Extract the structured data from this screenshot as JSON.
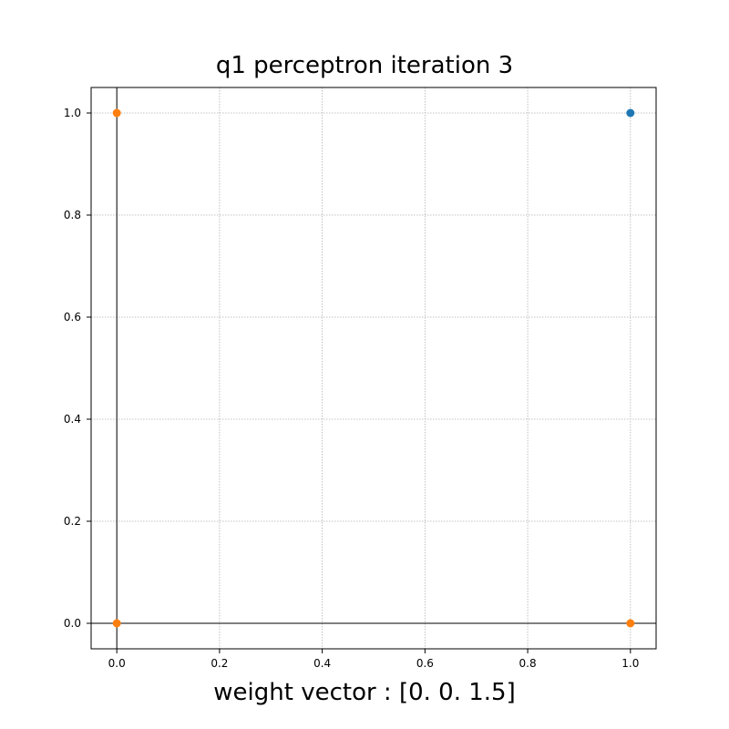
{
  "chart_data": {
    "type": "scatter",
    "title": "q1 perceptron iteration 3",
    "xlabel": "weight vector : [0.  0.  1.5]",
    "ylabel": "",
    "xlim": [
      -0.05,
      1.05
    ],
    "ylim": [
      -0.05,
      1.05
    ],
    "xticks": [
      "0.0",
      "0.2",
      "0.4",
      "0.6",
      "0.8",
      "1.0"
    ],
    "yticks": [
      "0.0",
      "0.2",
      "0.4",
      "0.6",
      "0.8",
      "1.0"
    ],
    "grid": true,
    "axis_lines_at_zero": true,
    "series": [
      {
        "color": "#1f77b4",
        "points": [
          {
            "x": 1.0,
            "y": 1.0
          }
        ]
      },
      {
        "color": "#ff7f0e",
        "points": [
          {
            "x": 0.0,
            "y": 1.0
          },
          {
            "x": 0.0,
            "y": 0.0
          },
          {
            "x": 1.0,
            "y": 0.0
          }
        ]
      }
    ]
  }
}
